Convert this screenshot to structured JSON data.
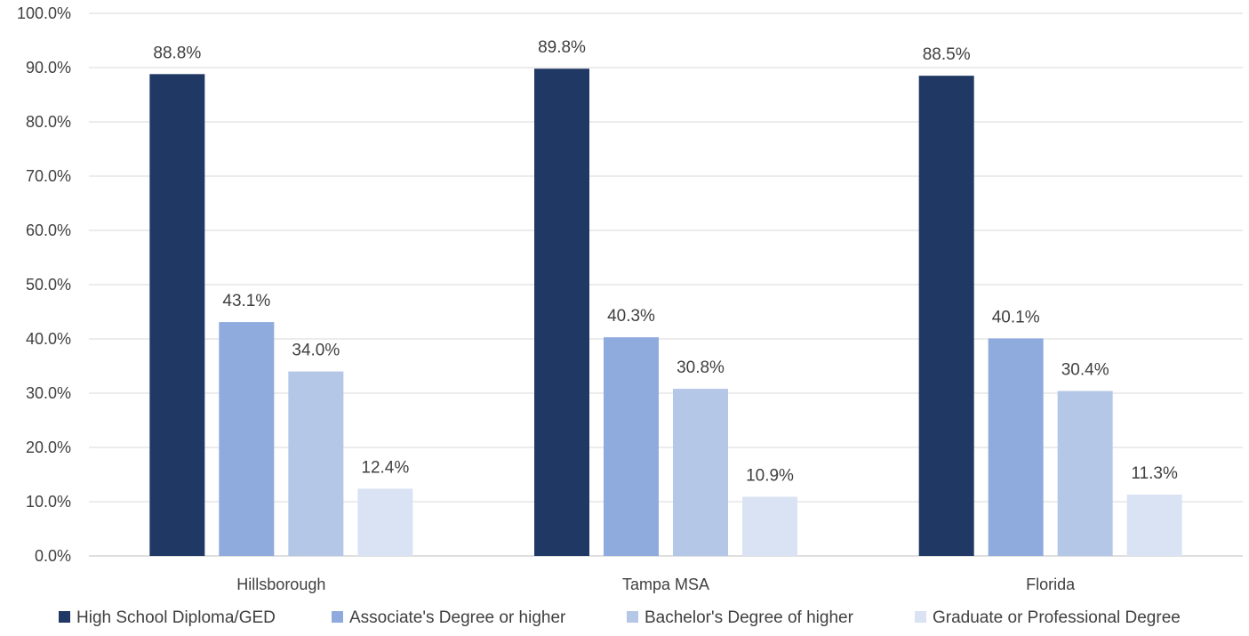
{
  "chart_data": {
    "type": "bar",
    "categories": [
      "Hillsborough",
      "Tampa MSA",
      "Florida"
    ],
    "series": [
      {
        "name": "High School Diploma/GED",
        "values": [
          88.8,
          89.8,
          88.5
        ],
        "labels": [
          "88.8%",
          "89.8%",
          "88.5%"
        ],
        "color": "#203864"
      },
      {
        "name": "Associate's Degree or higher",
        "values": [
          43.1,
          40.3,
          40.1
        ],
        "labels": [
          "43.1%",
          "40.3%",
          "40.1%"
        ],
        "color": "#8faadc"
      },
      {
        "name": "Bachelor's Degree of higher",
        "values": [
          34.0,
          30.8,
          30.4
        ],
        "labels": [
          "34.0%",
          "30.8%",
          "30.4%"
        ],
        "color": "#b4c7e7"
      },
      {
        "name": "Graduate or Professional Degree",
        "values": [
          12.4,
          10.9,
          11.3
        ],
        "labels": [
          "12.4%",
          "10.9%",
          "11.3%"
        ],
        "color": "#dae3f3"
      }
    ],
    "yticks": [
      "0.0%",
      "10.0%",
      "20.0%",
      "30.0%",
      "40.0%",
      "50.0%",
      "60.0%",
      "70.0%",
      "80.0%",
      "90.0%",
      "100.0%"
    ],
    "ylim": [
      0,
      100
    ],
    "grid": true,
    "legend": "bottom"
  }
}
